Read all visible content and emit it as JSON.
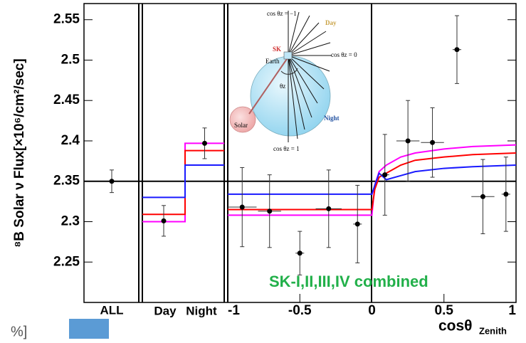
{
  "chart_data": {
    "type": "scatter",
    "ylabel": "⁸B Solar ν Flux[×10⁶/cm²/sec]",
    "xlabel": "cosθ",
    "xlabel_sub": "Zenith",
    "ylim": [
      2.2,
      2.57
    ],
    "yticks": [
      2.25,
      2.3,
      2.35,
      2.4,
      2.45,
      2.5,
      2.55
    ],
    "xlim": [
      -1,
      1
    ],
    "xticks": [
      -1,
      -0.5,
      0,
      0.5,
      1
    ],
    "reference_line": 2.35,
    "all": {
      "categories": [
        "ALL"
      ],
      "values": [
        2.35
      ],
      "errors": [
        0.014
      ]
    },
    "day_night": {
      "categories": [
        "Day",
        "Night"
      ],
      "values": [
        2.301,
        2.397
      ],
      "errors": [
        0.019,
        0.019
      ],
      "models": [
        {
          "color": "#ff00ff",
          "values": [
            2.3,
            2.397
          ]
        },
        {
          "color": "#ff0000",
          "values": [
            2.309,
            2.388
          ]
        },
        {
          "color": "#1a1aff",
          "values": [
            2.33,
            2.37
          ]
        }
      ]
    },
    "zenith": {
      "x": [
        -0.9,
        -0.71,
        -0.5,
        -0.3,
        -0.1,
        0.09,
        0.25,
        0.42,
        0.59,
        0.77,
        0.93
      ],
      "values": [
        2.318,
        2.313,
        2.261,
        2.316,
        2.297,
        2.358,
        2.4,
        2.398,
        2.513,
        2.331,
        2.334
      ],
      "errors": [
        0.049,
        0.045,
        0.027,
        0.048,
        0.048,
        0.05,
        0.05,
        0.043,
        0.042,
        0.046,
        0.046
      ],
      "xerr": [
        0.1,
        0.08,
        0.03,
        0.09,
        0.03,
        0.03,
        0.08,
        0.08,
        0.03,
        0.08,
        0.03
      ],
      "models": [
        {
          "color": "#ff00ff",
          "x": [
            -1,
            0,
            0.02,
            0.05,
            0.1,
            0.2,
            0.3,
            0.5,
            0.7,
            1
          ],
          "values": [
            2.308,
            2.308,
            2.345,
            2.362,
            2.37,
            2.38,
            2.385,
            2.39,
            2.393,
            2.395
          ]
        },
        {
          "color": "#ff0000",
          "x": [
            -1,
            0,
            0.02,
            0.05,
            0.1,
            0.2,
            0.3,
            0.5,
            0.7,
            1
          ],
          "values": [
            2.315,
            2.315,
            2.34,
            2.355,
            2.36,
            2.37,
            2.376,
            2.38,
            2.383,
            2.385
          ]
        },
        {
          "color": "#1a1aff",
          "x": [
            -1,
            0,
            0.02,
            0.05,
            0.1,
            0.2,
            0.3,
            0.5,
            0.7,
            1
          ],
          "values": [
            2.334,
            2.334,
            2.345,
            2.36,
            2.352,
            2.357,
            2.362,
            2.366,
            2.368,
            2.37
          ]
        }
      ]
    },
    "annotation": "SK-I,II,III,IV combined",
    "inset": {
      "top": "cos θz = −1",
      "day": "Day",
      "sk": "SK",
      "earth": "Earth",
      "horizon": "cos θz = 0",
      "angle": "θz",
      "solar": "Solar",
      "night": "Night",
      "bottom": "cos θz = 1"
    },
    "footer": "%]"
  }
}
